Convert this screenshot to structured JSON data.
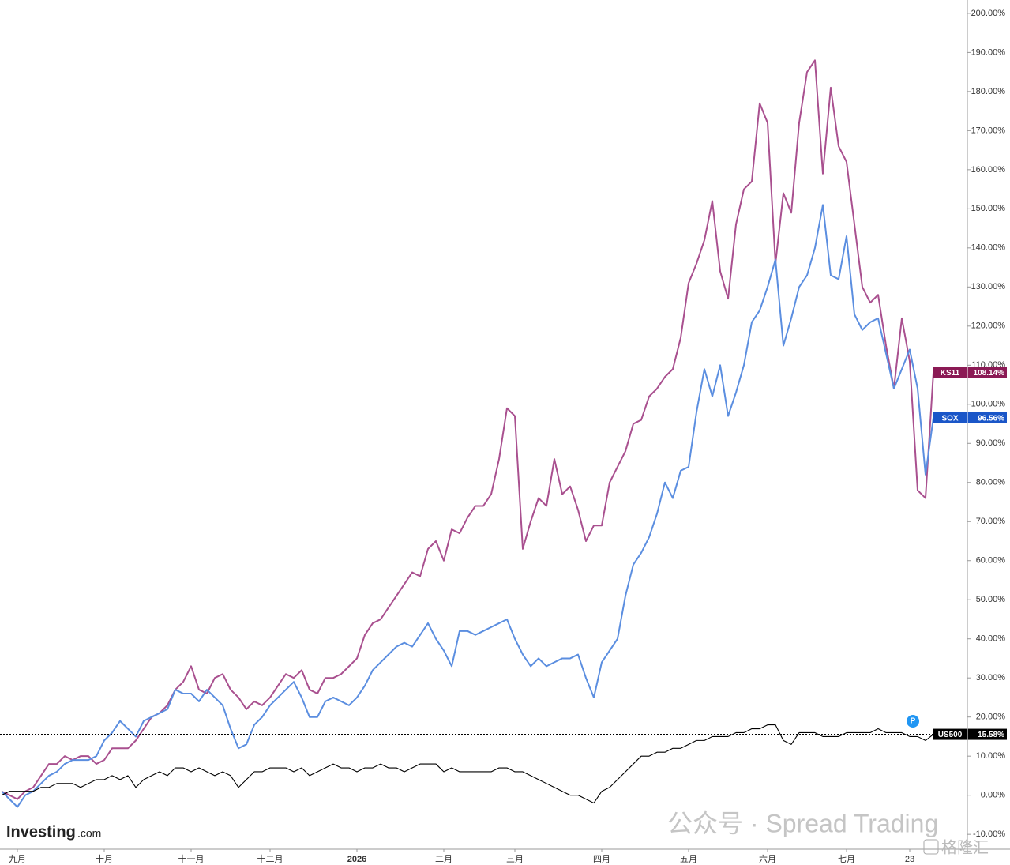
{
  "chart_data": {
    "type": "line",
    "categories": [
      null,
      null,
      "九月",
      null,
      null,
      null,
      null,
      null,
      null,
      null,
      null,
      null,
      null,
      "十月",
      null,
      null,
      null,
      null,
      null,
      null,
      null,
      null,
      null,
      null,
      "十一月",
      null,
      null,
      null,
      null,
      null,
      null,
      null,
      null,
      null,
      "十二月",
      null,
      null,
      null,
      null,
      null,
      null,
      null,
      null,
      null,
      null,
      "2026",
      null,
      null,
      null,
      null,
      null,
      null,
      null,
      null,
      null,
      null,
      "二月",
      null,
      null,
      null,
      null,
      null,
      null,
      null,
      null,
      "三月",
      null,
      null,
      null,
      null,
      null,
      null,
      null,
      null,
      null,
      null,
      "四月",
      null,
      null,
      null,
      null,
      null,
      null,
      null,
      null,
      null,
      null,
      "五月",
      null,
      null,
      null,
      null,
      null,
      null,
      null,
      null,
      null,
      "六月",
      null,
      null,
      null,
      null,
      null,
      null,
      null,
      null,
      null,
      "七月",
      null,
      null,
      null,
      null,
      null,
      null,
      null,
      "23",
      null,
      null,
      null
    ],
    "series": [
      {
        "name": "KS11",
        "color": "#a9508f",
        "label_color": "#8b1a55",
        "last_label": "108.14%",
        "values": [
          1,
          0,
          -1,
          1,
          2,
          5,
          8,
          8,
          10,
          9,
          10,
          10,
          8,
          9,
          12,
          12,
          12,
          14,
          17,
          20,
          21,
          23,
          27,
          29,
          33,
          27,
          26,
          30,
          31,
          27,
          25,
          22,
          24,
          23,
          25,
          28,
          31,
          30,
          32,
          27,
          26,
          30,
          30,
          31,
          33,
          35,
          41,
          44,
          45,
          48,
          51,
          54,
          57,
          56,
          63,
          65,
          60,
          68,
          67,
          71,
          74,
          74,
          77,
          86,
          99,
          97,
          63,
          70,
          76,
          74,
          86,
          77,
          79,
          73,
          65,
          69,
          69,
          80,
          84,
          88,
          95,
          96,
          102,
          104,
          107,
          109,
          117,
          131,
          136,
          142,
          152,
          134,
          127,
          146,
          155,
          157,
          177,
          172,
          136,
          154,
          149,
          172,
          185,
          188,
          159,
          181,
          166,
          162,
          146,
          130,
          126,
          128,
          115,
          104,
          122,
          111,
          78,
          76,
          108.14
        ]
      },
      {
        "name": "SOX",
        "color": "#5b8ee0",
        "label_color": "#1a56c8",
        "last_label": "96.56%",
        "values": [
          1,
          -1,
          -3,
          0,
          1,
          3,
          5,
          6,
          8,
          9,
          9,
          9,
          10,
          14,
          16,
          19,
          17,
          15,
          19,
          20,
          21,
          22,
          27,
          26,
          26,
          24,
          27,
          25,
          23,
          17,
          12,
          13,
          18,
          20,
          23,
          25,
          27,
          29,
          25,
          20,
          20,
          24,
          25,
          24,
          23,
          25,
          28,
          32,
          34,
          36,
          38,
          39,
          38,
          41,
          44,
          40,
          37,
          33,
          42,
          42,
          41,
          42,
          43,
          44,
          45,
          40,
          36,
          33,
          35,
          33,
          34,
          35,
          35,
          36,
          30,
          25,
          34,
          37,
          40,
          51,
          59,
          62,
          66,
          72,
          80,
          76,
          83,
          84,
          98,
          109,
          102,
          110,
          97,
          103,
          110,
          121,
          124,
          130,
          137,
          115,
          122,
          130,
          133,
          140,
          151,
          133,
          132,
          143,
          123,
          119,
          121,
          122,
          113,
          104,
          109,
          114,
          104,
          82,
          96.56
        ]
      },
      {
        "name": "US500",
        "color": "#000000",
        "label_color": "#000000",
        "last_label": "15.58%",
        "price_line": true,
        "values": [
          0,
          1,
          1,
          1,
          1,
          2,
          2,
          3,
          3,
          3,
          2,
          3,
          4,
          4,
          5,
          4,
          5,
          2,
          4,
          5,
          6,
          5,
          7,
          7,
          6,
          7,
          6,
          5,
          6,
          5,
          2,
          4,
          6,
          6,
          7,
          7,
          7,
          6,
          7,
          5,
          6,
          7,
          8,
          7,
          7,
          6,
          7,
          7,
          8,
          7,
          7,
          6,
          7,
          8,
          8,
          8,
          6,
          7,
          6,
          6,
          6,
          6,
          6,
          7,
          7,
          6,
          6,
          5,
          4,
          3,
          2,
          1,
          0,
          0,
          -1,
          -2,
          1,
          2,
          4,
          6,
          8,
          10,
          10,
          11,
          11,
          12,
          12,
          13,
          14,
          14,
          15,
          15,
          15,
          16,
          16,
          17,
          17,
          18,
          18,
          14,
          13,
          16,
          16,
          16,
          15,
          15,
          15,
          16,
          16,
          16,
          16,
          17,
          16,
          16,
          16,
          15,
          15,
          14,
          15.58
        ]
      }
    ],
    "ylim": [
      -13,
      202
    ],
    "yticks": [
      {
        "value": -10,
        "label": "-10.00%"
      },
      {
        "value": 0,
        "label": "0.00%"
      },
      {
        "value": 10,
        "label": "10.00%"
      },
      {
        "value": 20,
        "label": "20.00%"
      },
      {
        "value": 30,
        "label": "30.00%"
      },
      {
        "value": 40,
        "label": "40.00%"
      },
      {
        "value": 50,
        "label": "50.00%"
      },
      {
        "value": 60,
        "label": "60.00%"
      },
      {
        "value": 70,
        "label": "70.00%"
      },
      {
        "value": 80,
        "label": "80.00%"
      },
      {
        "value": 90,
        "label": "90.00%"
      },
      {
        "value": 100,
        "label": "100.00%"
      },
      {
        "value": 110,
        "label": "110.00%"
      },
      {
        "value": 120,
        "label": "120.00%"
      },
      {
        "value": 130,
        "label": "130.00%"
      },
      {
        "value": 140,
        "label": "140.00%"
      },
      {
        "value": 150,
        "label": "150.00%"
      },
      {
        "value": 160,
        "label": "160.00%"
      },
      {
        "value": 170,
        "label": "170.00%"
      },
      {
        "value": 180,
        "label": "180.00%"
      },
      {
        "value": 190,
        "label": "190.00%"
      },
      {
        "value": 200,
        "label": "200.00%"
      }
    ],
    "grid": false,
    "badge": "P",
    "logo": "Investing",
    "logo_suffix": ".com",
    "watermark": "公众号 · Spread Trading",
    "watermark2": "格隆汇"
  }
}
